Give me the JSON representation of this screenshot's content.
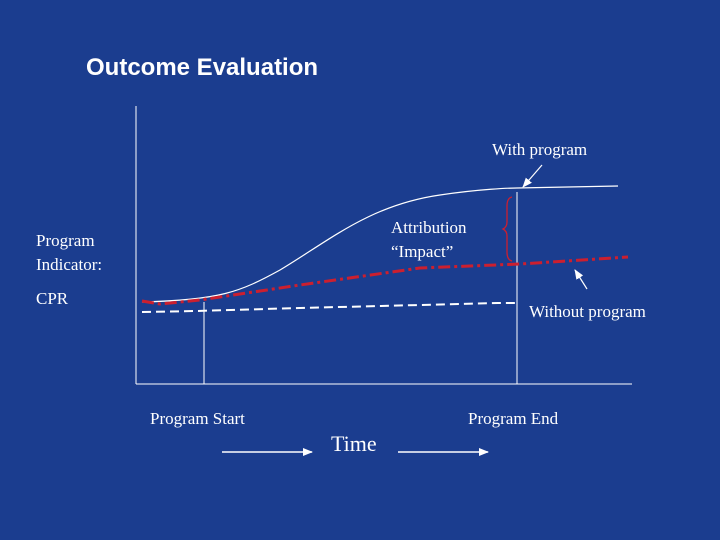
{
  "slide": {
    "title": "Outcome Evaluation",
    "y_label_line1": "Program",
    "y_label_line2": "Indicator:",
    "y_label_indicator": "CPR",
    "label_with_program": "With program",
    "label_without_program": "Without program",
    "label_attribution": "Attribution",
    "label_impact": "“Impact”",
    "label_program_start": "Program Start",
    "label_program_end": "Program End",
    "label_time": "Time"
  },
  "colors": {
    "background": "#1b3d8f",
    "lines": "#ffffff",
    "trend": "#cc1f2f"
  }
}
